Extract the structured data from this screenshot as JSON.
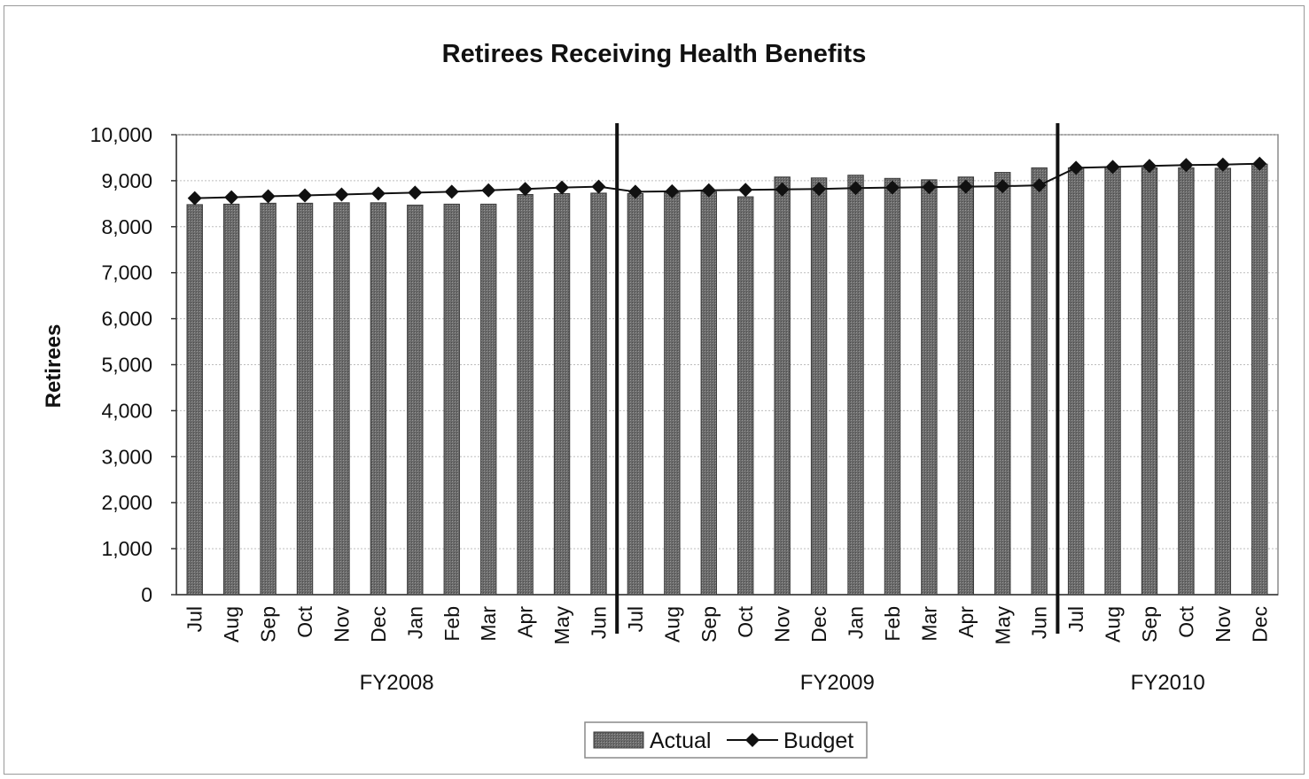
{
  "chart_data": {
    "type": "bar",
    "title": "Retirees Receiving Health Benefits",
    "xlabel": "",
    "ylabel": "Retirees",
    "ylim": [
      0,
      10000
    ],
    "yticks": [
      "0",
      "1,000",
      "2,000",
      "3,000",
      "4,000",
      "5,000",
      "6,000",
      "7,000",
      "8,000",
      "9,000",
      "10,000"
    ],
    "categories": [
      "Jul",
      "Aug",
      "Sep",
      "Oct",
      "Nov",
      "Dec",
      "Jan",
      "Feb",
      "Mar",
      "Apr",
      "May",
      "Jun",
      "Jul",
      "Aug",
      "Sep",
      "Oct",
      "Nov",
      "Dec",
      "Jan",
      "Feb",
      "Mar",
      "Apr",
      "May",
      "Jun",
      "Jul",
      "Aug",
      "Sep",
      "Oct",
      "Nov",
      "Dec"
    ],
    "groups": [
      {
        "label": "FY2008",
        "count": 12
      },
      {
        "label": "FY2009",
        "count": 12
      },
      {
        "label": "FY2010",
        "count": 6
      }
    ],
    "series": [
      {
        "name": "Actual",
        "type": "bar",
        "color": "#6b6b6b",
        "values": [
          8480,
          8490,
          8510,
          8510,
          8520,
          8520,
          8470,
          8490,
          8490,
          8700,
          8720,
          8730,
          8720,
          8740,
          8760,
          8650,
          9080,
          9060,
          9120,
          9050,
          9020,
          9080,
          9180,
          9280,
          9280,
          9300,
          9280,
          9280,
          9270,
          9360
        ]
      },
      {
        "name": "Budget",
        "type": "line",
        "color": "#111111",
        "marker": "diamond",
        "values": [
          8620,
          8640,
          8660,
          8680,
          8700,
          8720,
          8740,
          8760,
          8790,
          8820,
          8850,
          8870,
          8760,
          8770,
          8790,
          8800,
          8810,
          8820,
          8840,
          8850,
          8860,
          8870,
          8880,
          8900,
          9280,
          9300,
          9320,
          9340,
          9350,
          9370
        ]
      }
    ],
    "grid": true,
    "legend": {
      "placement": "bottom-center",
      "items": [
        "Actual",
        "Budget"
      ]
    }
  }
}
